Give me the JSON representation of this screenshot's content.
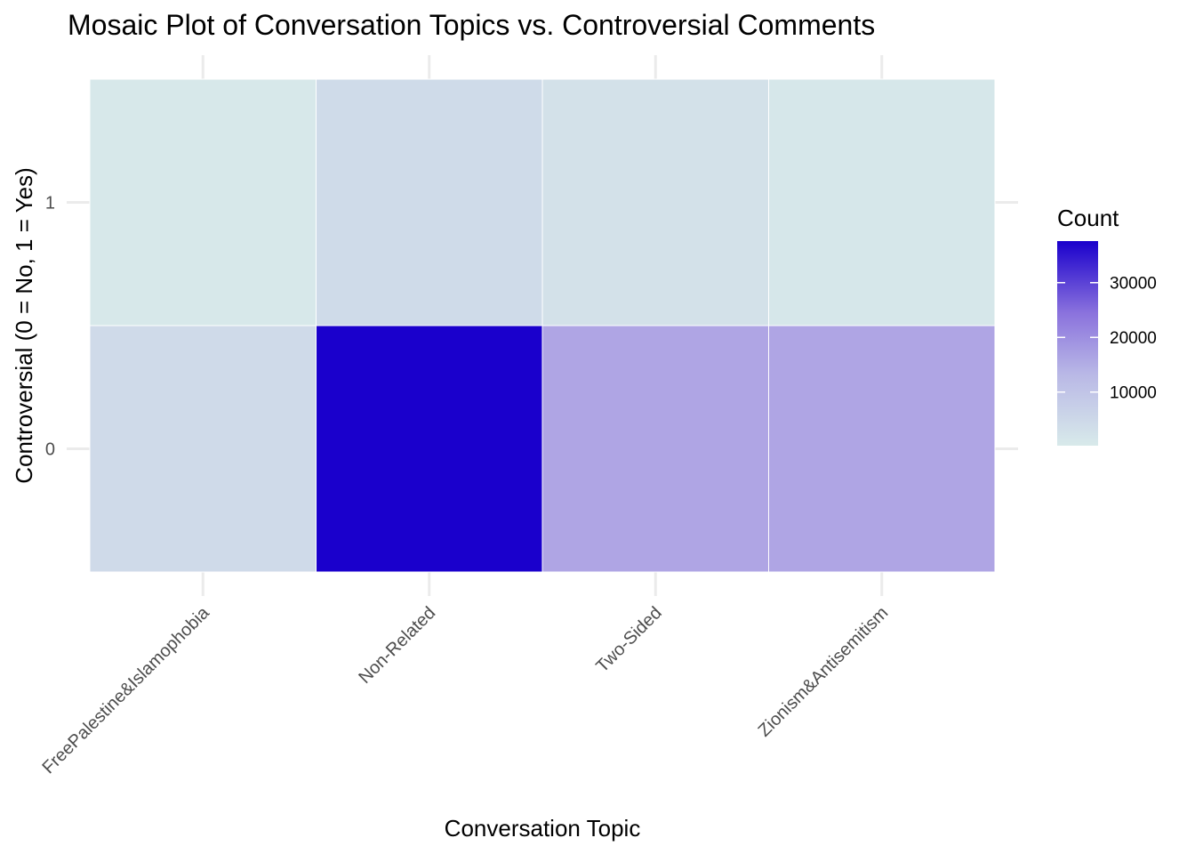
{
  "chart_data": {
    "type": "heatmap",
    "title": "Mosaic Plot of Conversation Topics vs. Controversial Comments",
    "xlabel": "Conversation Topic",
    "ylabel": "Controversial (0 = No, 1 = Yes)",
    "x_categories": [
      "FreePalestine&Islamophobia",
      "Non-Related",
      "Two-Sided",
      "Zionism&Antisemitism"
    ],
    "y_categories": [
      "0",
      "1"
    ],
    "cells": [
      {
        "x": "FreePalestine&Islamophobia",
        "y": "0",
        "count": 3000
      },
      {
        "x": "FreePalestine&Islamophobia",
        "y": "1",
        "count": 500
      },
      {
        "x": "Non-Related",
        "y": "0",
        "count": 37600
      },
      {
        "x": "Non-Related",
        "y": "1",
        "count": 2800
      },
      {
        "x": "Two-Sided",
        "y": "0",
        "count": 12000
      },
      {
        "x": "Two-Sided",
        "y": "1",
        "count": 1800
      },
      {
        "x": "Zionism&Antisemitism",
        "y": "0",
        "count": 12000
      },
      {
        "x": "Zionism&Antisemitism",
        "y": "1",
        "count": 700
      }
    ],
    "legend": {
      "title": "Count",
      "position": "right",
      "ticks": [
        "10000",
        "20000",
        "30000"
      ],
      "range": [
        200,
        37600
      ],
      "low_color": "#d8eaea",
      "high_color": "#1a00cc"
    },
    "grid": true
  }
}
